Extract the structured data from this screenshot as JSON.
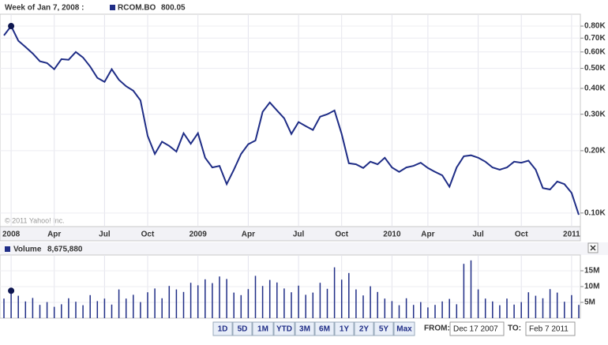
{
  "chart_data": [
    {
      "type": "line",
      "header": "Week of Jan 7, 2008 :",
      "log_scale": true,
      "grid": true,
      "copyright": "© 2011 Yahoo! Inc.",
      "legend_value": 800.05,
      "categories": [
        null,
        "2008",
        null,
        null,
        null,
        null,
        null,
        "Apr",
        null,
        null,
        null,
        null,
        null,
        null,
        "Jul",
        null,
        null,
        null,
        null,
        null,
        "Oct",
        null,
        null,
        null,
        null,
        null,
        null,
        "2009",
        null,
        null,
        null,
        null,
        null,
        null,
        "Apr",
        null,
        null,
        null,
        null,
        null,
        null,
        "Jul",
        null,
        null,
        null,
        null,
        null,
        "Oct",
        null,
        null,
        null,
        null,
        null,
        null,
        "2010",
        null,
        null,
        null,
        null,
        "Apr",
        null,
        null,
        null,
        null,
        null,
        null,
        "Jul",
        null,
        null,
        null,
        null,
        null,
        "Oct",
        null,
        null,
        null,
        null,
        null,
        null,
        "2011",
        null
      ],
      "series": [
        {
          "name": "RCOM.BO",
          "color": "#1f2d86",
          "values": [
            721,
            800.05,
            680,
            634,
            590,
            541,
            530,
            495,
            554,
            550,
            600,
            564,
            510,
            450,
            430,
            495,
            440,
            410,
            390,
            350,
            236,
            193,
            221,
            211,
            198,
            243,
            216,
            243,
            185,
            166,
            169,
            138,
            162,
            193,
            215,
            224,
            308,
            342,
            313,
            287,
            241,
            275,
            263,
            252,
            292,
            300,
            313,
            241,
            174,
            172,
            165,
            177,
            172,
            185,
            166,
            158,
            166,
            169,
            175,
            165,
            158,
            152,
            134,
            166,
            188,
            190,
            185,
            177,
            166,
            162,
            166,
            177,
            175,
            179,
            162,
            132,
            130,
            142,
            138,
            125,
            98
          ]
        }
      ],
      "ylim": [
        86,
        913
      ],
      "yticks": [
        {
          "value": 100,
          "label": "0.10K"
        },
        {
          "value": 200,
          "label": "0.20K"
        },
        {
          "value": 300,
          "label": "0.30K"
        },
        {
          "value": 400,
          "label": "0.40K"
        },
        {
          "value": 500,
          "label": "0.50K"
        },
        {
          "value": 600,
          "label": "0.60K"
        },
        {
          "value": 700,
          "label": "0.70K"
        },
        {
          "value": 800,
          "label": "0.80K"
        }
      ]
    },
    {
      "type": "bar",
      "grid": true,
      "legend_value": {
        "value": 8675880,
        "label": "8,675,880"
      },
      "series": [
        {
          "name": "Volume",
          "color": "#1f2d86",
          "values": [
            6200000,
            8675880,
            7100000,
            5300000,
            6400000,
            4200000,
            5100000,
            3600000,
            4400000,
            6300000,
            5200000,
            4100000,
            7300000,
            5400000,
            6200000,
            4300000,
            9100000,
            6200000,
            7400000,
            5100000,
            8200000,
            9400000,
            6300000,
            10200000,
            9100000,
            8300000,
            11200000,
            10400000,
            12300000,
            11100000,
            13200000,
            12400000,
            8100000,
            7300000,
            9200000,
            13400000,
            10200000,
            12100000,
            11300000,
            9400000,
            8200000,
            10300000,
            7400000,
            8100000,
            11200000,
            9300000,
            16100000,
            12200000,
            14300000,
            9100000,
            7200000,
            10100000,
            8300000,
            6200000,
            5400000,
            4100000,
            6300000,
            4200000,
            5100000,
            3400000,
            4200000,
            5300000,
            6100000,
            4400000,
            17200000,
            18300000,
            9100000,
            6200000,
            5300000,
            4100000,
            6200000,
            4300000,
            5100000,
            8200000,
            7100000,
            6300000,
            9200000,
            8100000,
            5200000,
            7300000,
            4200000
          ]
        }
      ],
      "ylim": [
        0,
        20000000
      ],
      "yticks": [
        {
          "value": 5000000,
          "label": "5M"
        },
        {
          "value": 10000000,
          "label": "10M"
        },
        {
          "value": 15000000,
          "label": "15M"
        }
      ]
    }
  ],
  "controls": {
    "buttons": [
      "1D",
      "5D",
      "1M",
      "YTD",
      "3M",
      "6M",
      "1Y",
      "2Y",
      "5Y",
      "Max"
    ],
    "from_label": "FROM:",
    "from": "Dec 17 2007",
    "to_label": "TO:",
    "to": "Feb 7 2011"
  }
}
